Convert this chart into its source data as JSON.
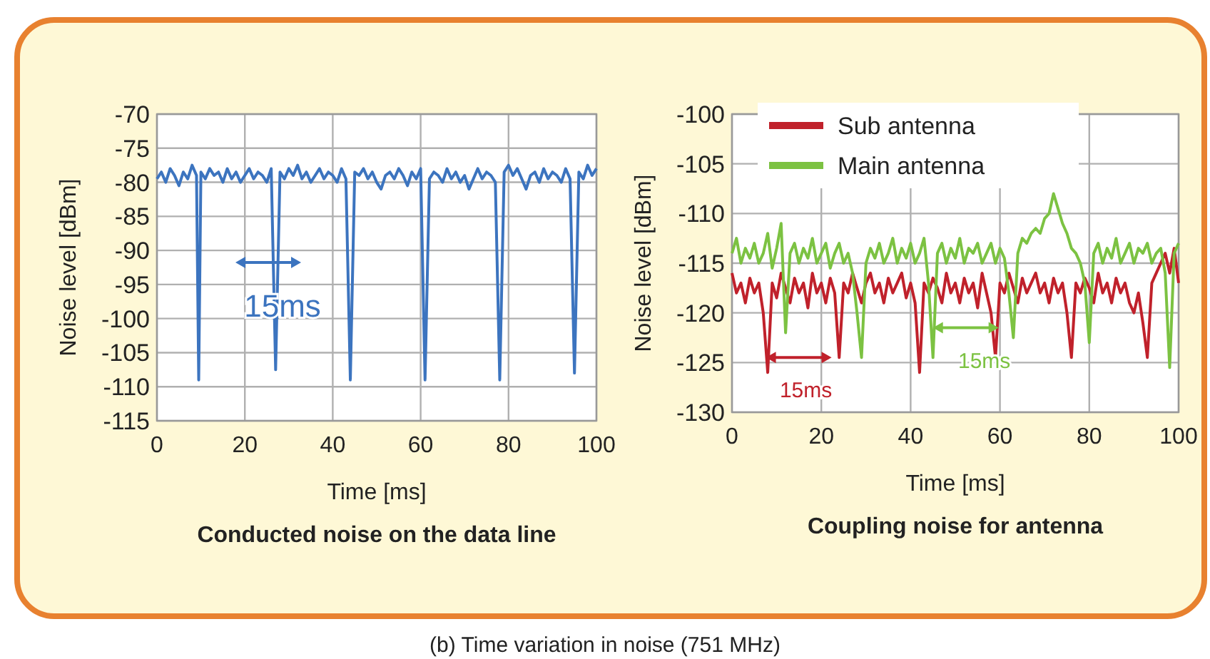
{
  "chart_data": [
    {
      "type": "line",
      "title": "Conducted noise on the data line",
      "xlabel": "Time [ms]",
      "ylabel": "Noise level [dBm]",
      "xlim": [
        0,
        100
      ],
      "xticks": [
        0,
        20,
        40,
        60,
        80,
        100
      ],
      "ylim": [
        -115,
        -70
      ],
      "yticks": [
        -115,
        -110,
        -105,
        -100,
        -95,
        -90,
        -85,
        -80,
        -75,
        -70
      ],
      "grid": true,
      "legend": false,
      "series": [
        {
          "color": "#3c74bf",
          "x": [
            0,
            1,
            2,
            3,
            4,
            5,
            6,
            7,
            8,
            9,
            9.5,
            10,
            11,
            12,
            13,
            14,
            15,
            16,
            17,
            18,
            19,
            20,
            21,
            22,
            23,
            24,
            25,
            26,
            27,
            28,
            29,
            30,
            31,
            32,
            33,
            34,
            35,
            36,
            37,
            38,
            39,
            40,
            41,
            42,
            43,
            44,
            45,
            46,
            47,
            48,
            49,
            50,
            51,
            52,
            53,
            54,
            55,
            56,
            57,
            58,
            59,
            60,
            61,
            62,
            63,
            64,
            65,
            66,
            67,
            68,
            69,
            70,
            71,
            72,
            73,
            74,
            75,
            76,
            77,
            78,
            79,
            80,
            81,
            82,
            83,
            84,
            85,
            86,
            87,
            88,
            89,
            90,
            91,
            92,
            93,
            94,
            95,
            96,
            97,
            98,
            99,
            100
          ],
          "values": [
            -79.5,
            -78.5,
            -80,
            -78,
            -79,
            -80.5,
            -78.5,
            -79.5,
            -77.5,
            -79,
            -109,
            -78.5,
            -79.5,
            -78,
            -79,
            -78.5,
            -80,
            -78,
            -79.5,
            -78.5,
            -80,
            -79,
            -78,
            -79.5,
            -78.5,
            -79,
            -80,
            -78,
            -107.5,
            -78.5,
            -79.5,
            -78,
            -79,
            -77.5,
            -79.5,
            -78.5,
            -80,
            -79,
            -78,
            -79.5,
            -78.5,
            -79,
            -80,
            -78,
            -79.5,
            -109,
            -78.5,
            -79,
            -78,
            -79.5,
            -78.5,
            -80,
            -81,
            -79,
            -78.5,
            -79.5,
            -78,
            -79,
            -80.5,
            -78.5,
            -79.5,
            -78,
            -109,
            -79.5,
            -78.5,
            -79,
            -80,
            -78,
            -79.5,
            -78.5,
            -80,
            -79,
            -81,
            -79.5,
            -78,
            -79.5,
            -78.5,
            -79,
            -80,
            -109,
            -78.5,
            -77.5,
            -79,
            -78,
            -79.5,
            -81,
            -79,
            -78.5,
            -80,
            -78,
            -79.5,
            -78.5,
            -79,
            -80,
            -78,
            -79.5,
            -108,
            -78.5,
            -79.5,
            -77.5,
            -79,
            -78
          ]
        }
      ],
      "annotations": [
        "15ms"
      ]
    },
    {
      "type": "line",
      "title": "Coupling noise for antenna",
      "xlabel": "Time [ms]",
      "ylabel": "Noise level [dBm]",
      "xlim": [
        0,
        100
      ],
      "xticks": [
        0,
        20,
        40,
        60,
        80,
        100
      ],
      "ylim": [
        -130,
        -100
      ],
      "yticks": [
        -130,
        -125,
        -120,
        -115,
        -110,
        -105,
        -100
      ],
      "grid": true,
      "legend": "top left",
      "series": [
        {
          "name": "Sub antenna",
          "color": "#c0212b",
          "values": [
            -116,
            -118,
            -117,
            -119,
            -116.5,
            -118,
            -117,
            -120,
            -126,
            -117,
            -118.5,
            -116,
            -117.5,
            -119,
            -116.5,
            -118,
            -117,
            -119.5,
            -116,
            -118,
            -117,
            -119,
            -116.5,
            -118,
            -124.5,
            -117,
            -118,
            -116,
            -117.5,
            -119,
            -117,
            -116,
            -118,
            -117,
            -119,
            -116.5,
            -118,
            -117,
            -116,
            -118.5,
            -117,
            -119,
            -126,
            -117,
            -118,
            -116.5,
            -117.5,
            -119,
            -116,
            -118,
            -117,
            -119,
            -116.5,
            -118,
            -117,
            -119.5,
            -116,
            -118,
            -120,
            -124.5,
            -117,
            -118,
            -116,
            -117.5,
            -119,
            -116.5,
            -118,
            -117,
            -116,
            -118,
            -117,
            -119,
            -116.5,
            -118,
            -117,
            -120,
            -124.5,
            -117,
            -118,
            -116.5,
            -117.5,
            -119,
            -116,
            -118,
            -117,
            -119,
            -116.5,
            -118,
            -117,
            -119,
            -120,
            -118,
            -121,
            -124.5,
            -117,
            -116,
            -115,
            -114,
            -116,
            -113.5,
            -117
          ]
        },
        {
          "name": "Main antenna",
          "color": "#7cc242",
          "values": [
            -114,
            -112.5,
            -115,
            -113.5,
            -114.5,
            -113,
            -115,
            -114,
            -112,
            -115.5,
            -113.5,
            -111,
            -122,
            -114,
            -113,
            -115,
            -113.5,
            -114.5,
            -112.5,
            -115,
            -114,
            -113,
            -115.5,
            -114,
            -113,
            -115,
            -114,
            -116,
            -120,
            -124.5,
            -115,
            -113.5,
            -114.5,
            -113,
            -115,
            -114,
            -112.5,
            -115,
            -113.5,
            -114.5,
            -113,
            -115,
            -114,
            -112.5,
            -117,
            -124.5,
            -114,
            -113,
            -115,
            -113.5,
            -114.5,
            -112.5,
            -115,
            -113.5,
            -114,
            -113,
            -115,
            -114,
            -113,
            -115,
            -113.5,
            -114.5,
            -118,
            -122.5,
            -114,
            -112.5,
            -113,
            -112,
            -111.5,
            -112,
            -110.5,
            -110,
            -108,
            -109.5,
            -111,
            -112,
            -113.5,
            -114,
            -115,
            -117,
            -123,
            -114,
            -113,
            -115,
            -113.5,
            -114.5,
            -112.5,
            -115,
            -114,
            -113,
            -115,
            -113.5,
            -114,
            -113,
            -115,
            -114,
            -113.5,
            -116,
            -125.5,
            -114,
            -113
          ]
        }
      ],
      "x": [
        0,
        1,
        2,
        3,
        4,
        5,
        6,
        7,
        8,
        9,
        10,
        11,
        12,
        13,
        14,
        15,
        16,
        17,
        18,
        19,
        20,
        21,
        22,
        23,
        24,
        25,
        26,
        27,
        28,
        29,
        30,
        31,
        32,
        33,
        34,
        35,
        36,
        37,
        38,
        39,
        40,
        41,
        42,
        43,
        44,
        45,
        46,
        47,
        48,
        49,
        50,
        51,
        52,
        53,
        54,
        55,
        56,
        57,
        58,
        59,
        60,
        61,
        62,
        63,
        64,
        65,
        66,
        67,
        68,
        69,
        70,
        71,
        72,
        73,
        74,
        75,
        76,
        77,
        78,
        79,
        80,
        81,
        82,
        83,
        84,
        85,
        86,
        87,
        88,
        89,
        90,
        91,
        92,
        93,
        94,
        95,
        96,
        97,
        98,
        99,
        100
      ],
      "annotations": [
        {
          "text": "15ms",
          "x": 7.6,
          "y": -124.5
        },
        {
          "text": "15ms",
          "x": 45,
          "y": -121.5
        },
        "(b) Time variation in noise (751 MHz)"
      ]
    }
  ]
}
